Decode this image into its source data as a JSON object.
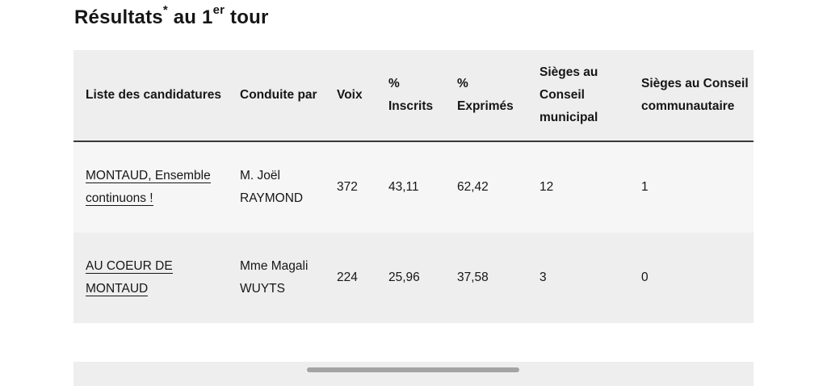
{
  "title": {
    "main": "Résultats",
    "asterisk": "*",
    "mid": " au 1",
    "sup": "er",
    "end": " tour"
  },
  "table": {
    "headers": [
      "Liste des candidatures",
      "Conduite par",
      "Voix",
      "% Inscrits",
      "% Exprimés",
      "Sièges au Conseil municipal",
      "Sièges au Conseil communautaire"
    ],
    "rows": [
      {
        "liste": "MONTAUD, Ensemble continuons !",
        "conduite": "M. Joël RAYMOND",
        "voix": "372",
        "inscrits": "43,11",
        "exprimes": "62,42",
        "sieges_municipal": "12",
        "sieges_communautaire": "1"
      },
      {
        "liste": "AU COEUR DE MONTAUD",
        "conduite": "Mme Magali WUYTS",
        "voix": "224",
        "inscrits": "25,96",
        "exprimes": "37,58",
        "sieges_municipal": "3",
        "sieges_communautaire": "0"
      }
    ]
  }
}
